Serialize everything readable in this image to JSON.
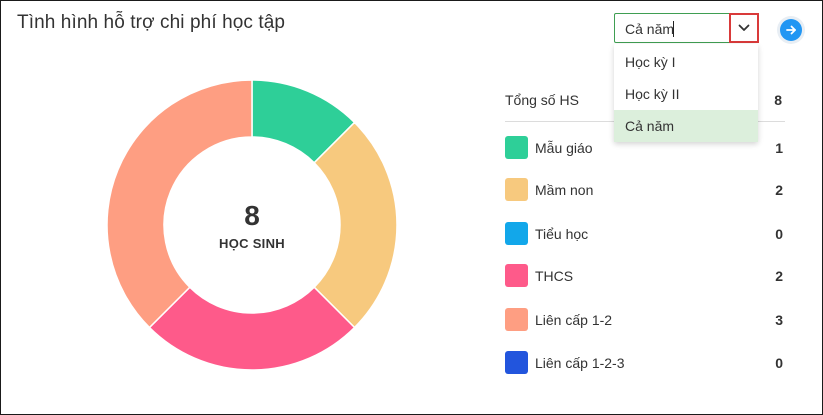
{
  "header": {
    "title": "Tình hình hỗ trợ chi phí học tập"
  },
  "filter": {
    "value": "Cả năm",
    "toggle_icon": "chevron-down-icon",
    "next_icon": "arrow-right-icon",
    "options": [
      "Học kỳ I",
      "Học kỳ II",
      "Cả năm"
    ],
    "selected_index": 2,
    "selected_bg": "#dcefdc"
  },
  "summary": {
    "center_number": "8",
    "center_label": "HỌC SINH",
    "total_label": "Tổng số HS",
    "total_value": "8"
  },
  "chart_data": {
    "type": "pie",
    "variant": "donut",
    "categories": [
      "Mẫu giáo",
      "Mầm non",
      "Tiểu học",
      "THCS",
      "Liên cấp 1-2",
      "Liên cấp 1-2-3"
    ],
    "values": [
      1,
      2,
      0,
      2,
      3,
      0
    ],
    "colors": [
      "#2ecf98",
      "#f7c97e",
      "#12a7ea",
      "#fe5a8a",
      "#fe9e82",
      "#2255dd"
    ],
    "legend_position": "right"
  }
}
